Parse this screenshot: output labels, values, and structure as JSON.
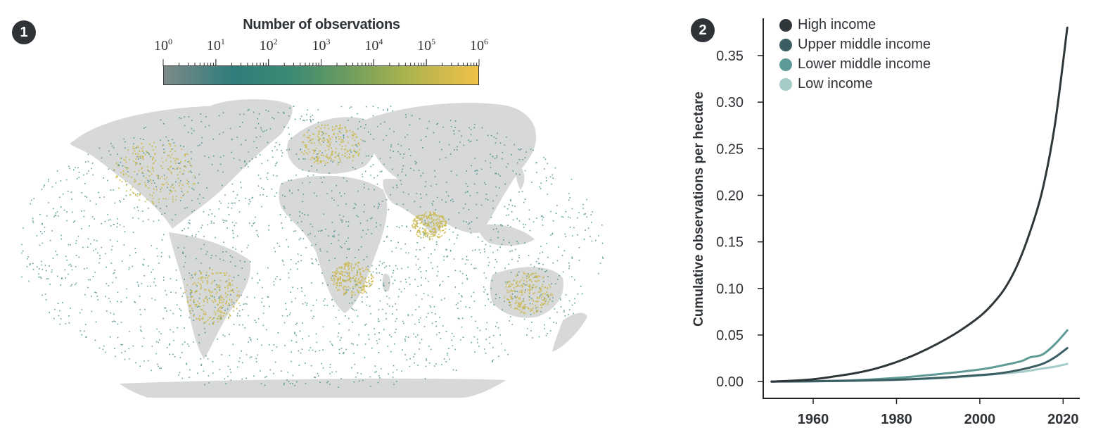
{
  "panel1": {
    "badge": "1",
    "colorbar": {
      "title": "Number of observations",
      "ticks": [
        {
          "base": "10",
          "exp": "0"
        },
        {
          "base": "10",
          "exp": "1"
        },
        {
          "base": "10",
          "exp": "2"
        },
        {
          "base": "10",
          "exp": "3"
        },
        {
          "base": "10",
          "exp": "4"
        },
        {
          "base": "10",
          "exp": "5"
        },
        {
          "base": "10",
          "exp": "6"
        }
      ],
      "colors": [
        "#7d8a89",
        "#2e7d7b",
        "#3a8a74",
        "#6b9c5f",
        "#a8b24e",
        "#f0c24a"
      ]
    },
    "map": {
      "land_color": "#d6d9d8",
      "obs_color": "#2e7d7b",
      "hot_color": "#c9b43c"
    }
  },
  "panel2": {
    "badge": "2"
  },
  "chart_data": {
    "type": "line",
    "title": "",
    "xlabel": "",
    "ylabel": "Cumulative observations per hectare",
    "xlim": [
      1948,
      2024
    ],
    "ylim": [
      -0.018,
      0.39
    ],
    "x_ticks": [
      1960,
      1980,
      2000,
      2020
    ],
    "x_tick_labels": [
      "1960",
      "1980",
      "2000",
      "2020"
    ],
    "y_ticks": [
      0.0,
      0.05,
      0.1,
      0.15,
      0.2,
      0.25,
      0.3,
      0.35
    ],
    "y_tick_labels": [
      "0.00",
      "0.05",
      "0.10",
      "0.15",
      "0.20",
      "0.25",
      "0.30",
      "0.35"
    ],
    "legend_position": "top-left",
    "series": [
      {
        "name": "High income",
        "color": "#2f3639",
        "x": [
          1950,
          1955,
          1960,
          1965,
          1970,
          1975,
          1980,
          1985,
          1990,
          1995,
          2000,
          2003,
          2006,
          2009,
          2012,
          2015,
          2018,
          2021
        ],
        "y": [
          0,
          0.001,
          0.0025,
          0.0055,
          0.009,
          0.014,
          0.021,
          0.03,
          0.041,
          0.054,
          0.07,
          0.083,
          0.1,
          0.125,
          0.16,
          0.205,
          0.275,
          0.38
        ]
      },
      {
        "name": "Upper middle income",
        "color": "#3c5e63",
        "x": [
          1950,
          1960,
          1970,
          1980,
          1990,
          2000,
          2005,
          2010,
          2015,
          2018,
          2021
        ],
        "y": [
          0,
          0.0003,
          0.001,
          0.002,
          0.004,
          0.007,
          0.009,
          0.013,
          0.019,
          0.026,
          0.036
        ]
      },
      {
        "name": "Lower middle income",
        "color": "#5e9a96",
        "x": [
          1950,
          1960,
          1970,
          1980,
          1990,
          2000,
          2005,
          2010,
          2012,
          2015,
          2018,
          2021
        ],
        "y": [
          0,
          0.0005,
          0.0015,
          0.004,
          0.008,
          0.013,
          0.017,
          0.022,
          0.026,
          0.029,
          0.04,
          0.055
        ]
      },
      {
        "name": "Low income",
        "color": "#a6ccc9",
        "x": [
          1950,
          1960,
          1970,
          1980,
          1990,
          2000,
          2005,
          2010,
          2015,
          2018,
          2021
        ],
        "y": [
          0,
          0.0003,
          0.0008,
          0.0018,
          0.0035,
          0.0065,
          0.0085,
          0.0105,
          0.014,
          0.016,
          0.019
        ]
      }
    ]
  }
}
